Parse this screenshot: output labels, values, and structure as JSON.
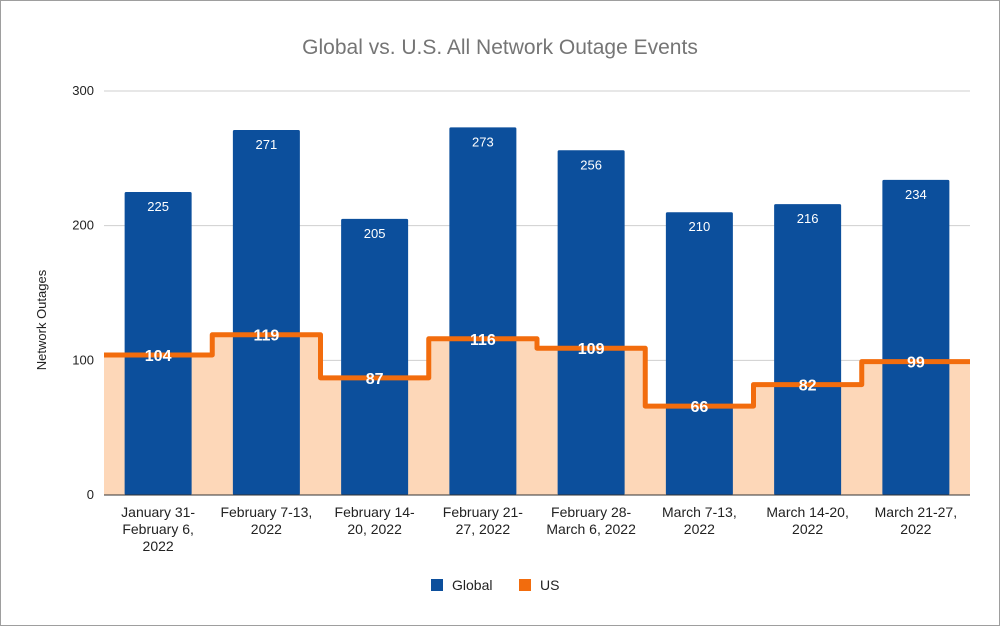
{
  "chart_data": {
    "type": "bar",
    "title": "Global vs. U.S. All Network Outage Events",
    "xlabel": "",
    "ylabel": "Network Outages",
    "ylim": [
      0,
      300
    ],
    "yticks": [
      0,
      100,
      200,
      300
    ],
    "categories": [
      [
        "January 31-",
        "February 6,",
        "2022"
      ],
      [
        "February 7-13,",
        "2022"
      ],
      [
        "February 14-",
        "20, 2022"
      ],
      [
        "February 21-",
        "27, 2022"
      ],
      [
        "February 28-",
        "March 6, 2022"
      ],
      [
        "March 7-13,",
        "2022"
      ],
      [
        "March 14-20,",
        "2022"
      ],
      [
        "March 21-27,",
        "2022"
      ]
    ],
    "series": [
      {
        "name": "Global",
        "type": "bar",
        "values": [
          225,
          271,
          205,
          273,
          256,
          210,
          216,
          234
        ]
      },
      {
        "name": "US",
        "type": "stepped-area",
        "values": [
          104,
          119,
          87,
          116,
          109,
          66,
          82,
          99
        ]
      }
    ],
    "legend_position": "bottom",
    "grid": true
  },
  "colors": {
    "global": "#0c4f9c",
    "us_line": "#f26c0d",
    "us_fill": "#fdd7b8",
    "grid": "#cfcfcf",
    "axis": "#333333"
  }
}
